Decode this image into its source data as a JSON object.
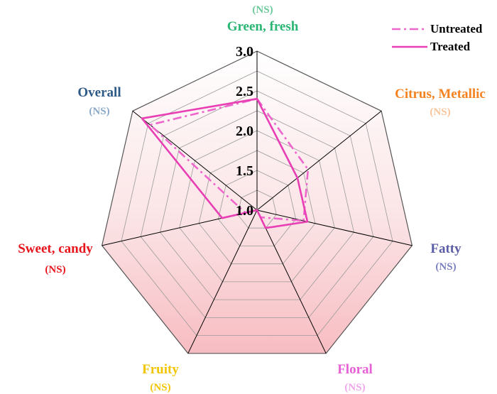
{
  "chart_data": {
    "type": "radar",
    "categories": [
      "Green, fresh",
      "Citrus, Metallic",
      "Fatty",
      "Floral",
      "Fruity",
      "Sweet, candy",
      "Overall"
    ],
    "significance": [
      "(NS)",
      "(NS)",
      "(NS)",
      "(NS)",
      "(NS)",
      "(NS)",
      "(NS)"
    ],
    "category_colors": [
      "#2bb673",
      "#f58220",
      "#5b5ea6",
      "#e85fd6",
      "#f2c500",
      "#e8141c",
      "#2e5a87"
    ],
    "significance_colors": [
      "#6cc99a",
      "#f8c49a",
      "#7b7fc0",
      "#f0a6e8",
      "#f2c500",
      "#e8141c",
      "#8aa8c8"
    ],
    "rmin": 1.0,
    "rmax": 3.0,
    "ticks": [
      "1.0",
      "1.5",
      "2.0",
      "2.5",
      "3.0"
    ],
    "tick_values": [
      1.0,
      1.5,
      2.0,
      2.5,
      3.0
    ],
    "series": [
      {
        "name": "Untreated",
        "values": [
          2.4,
          1.82,
          1.6,
          1.1,
          1.0,
          1.15,
          2.72
        ],
        "color": "#ee66cc",
        "style": "dash-dot"
      },
      {
        "name": "Treated",
        "values": [
          2.4,
          1.65,
          1.65,
          1.25,
          1.0,
          1.45,
          2.85
        ],
        "color": "#e83fb4",
        "style": "solid"
      }
    ],
    "legend": "top-right",
    "grid": true
  }
}
